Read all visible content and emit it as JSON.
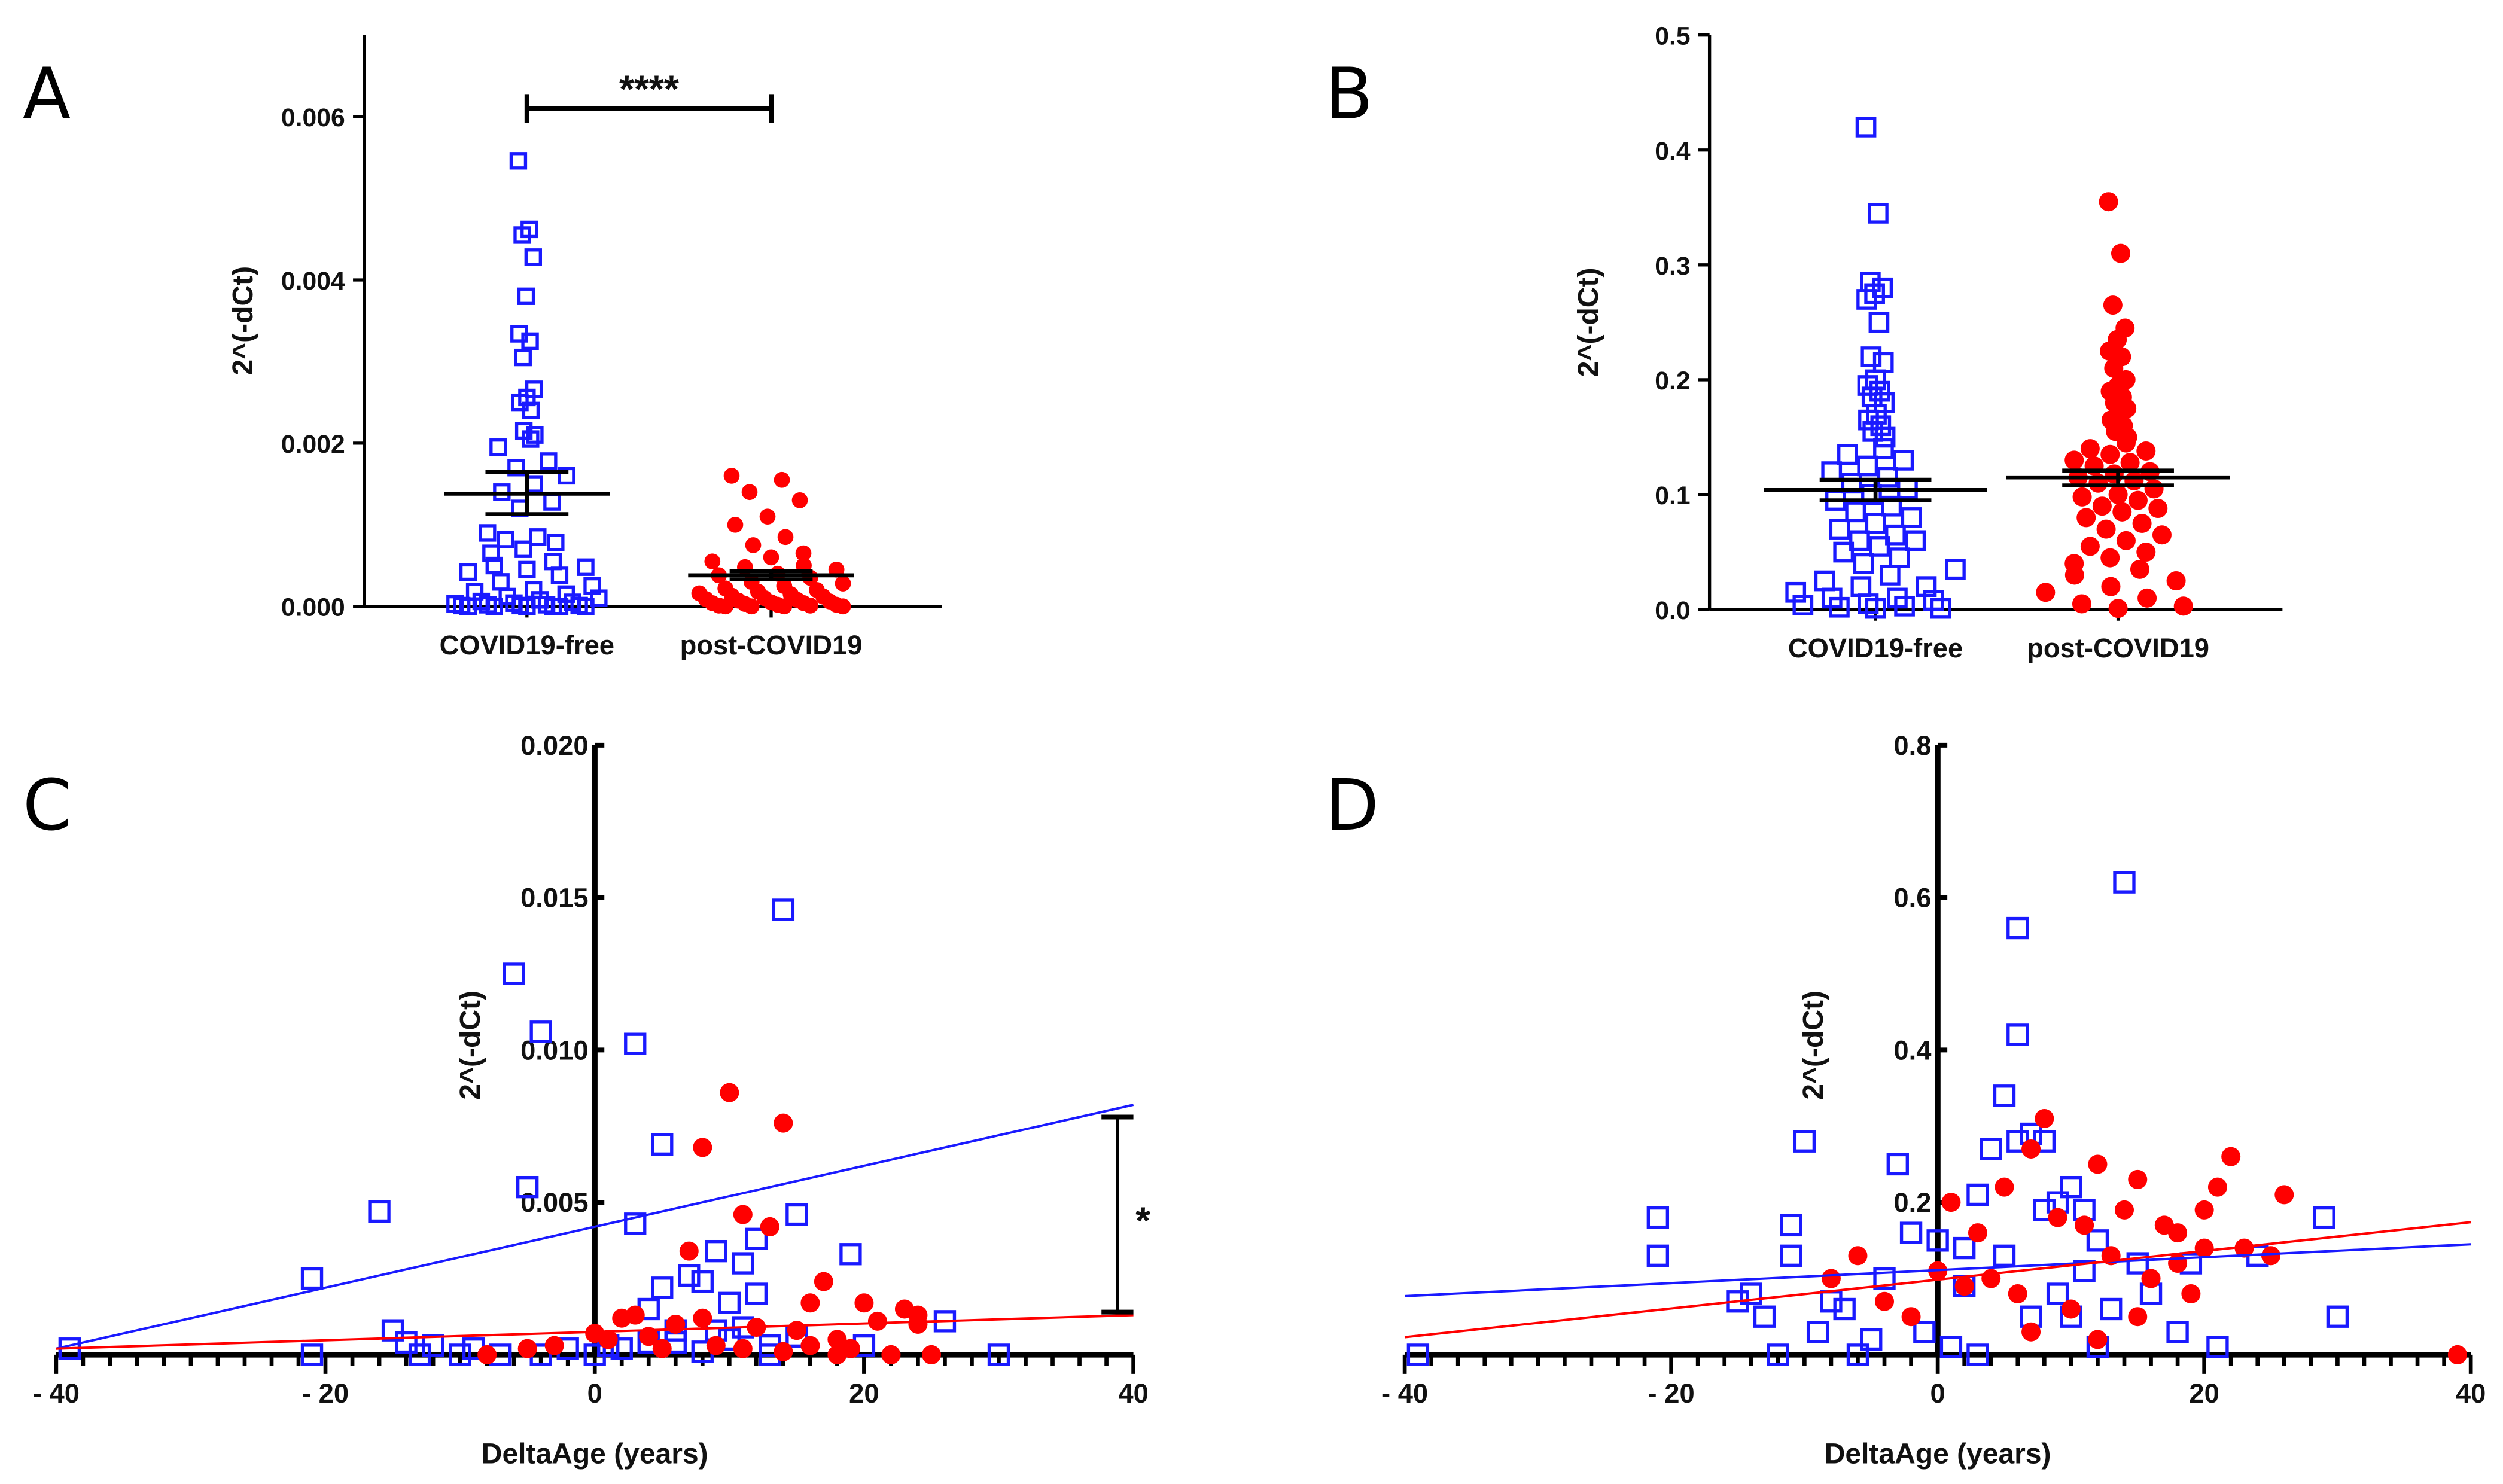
{
  "colors": {
    "blue": "#1a1aff",
    "red": "#ff0000",
    "axis": "#000000"
  },
  "chart_data": [
    {
      "panel": "A",
      "type": "scatter",
      "ylabel": "2^(-dCt)",
      "ylim": [
        0,
        0.007
      ],
      "yticks": [
        "0.000",
        "0.002",
        "0.004",
        "0.006"
      ],
      "ytick_values": [
        0,
        0.002,
        0.004,
        0.006
      ],
      "categories": [
        "COVID19-free",
        "post-COVID19"
      ],
      "significance": "****",
      "series": [
        {
          "name": "COVID19-free",
          "marker": "open-square",
          "mean": 0.00138,
          "sem": [
            0.00113,
            0.00165
          ],
          "values": [
            0.00546,
            0.00462,
            0.00455,
            0.00428,
            0.0038,
            0.00334,
            0.00325,
            0.00305,
            0.00266,
            0.00256,
            0.0025,
            0.0024,
            0.00215,
            0.0021,
            0.00205,
            0.00195,
            0.00178,
            0.0017,
            0.0016,
            0.0015,
            0.0014,
            0.00128,
            0.0012,
            0.0009,
            0.00085,
            0.00082,
            0.00078,
            0.0007,
            0.00065,
            0.00055,
            0.0005,
            0.00048,
            0.00045,
            0.00042,
            0.00038,
            0.0003,
            0.00025,
            0.0002,
            0.00018,
            0.00015,
            0.00012,
            0.0001,
            8e-05,
            6e-05,
            5e-05,
            4e-05,
            3e-05,
            2e-05,
            2e-05,
            1e-05,
            1e-05,
            1e-05,
            0,
            0,
            0,
            0,
            0,
            0
          ]
        },
        {
          "name": "post-COVID19",
          "marker": "filled-circle",
          "mean": 0.00038,
          "sem": [
            0.00033,
            0.00043
          ],
          "values": [
            0.0016,
            0.00155,
            0.0014,
            0.0013,
            0.0011,
            0.001,
            0.00085,
            0.00075,
            0.00065,
            0.0006,
            0.00055,
            0.0005,
            0.00048,
            0.00045,
            0.0004,
            0.00038,
            0.00035,
            0.0003,
            0.00028,
            0.00025,
            0.00022,
            0.0002,
            0.00018,
            0.00016,
            0.00015,
            0.00013,
            0.00012,
            0.0001,
            9e-05,
            8e-05,
            7e-05,
            6e-05,
            5e-05,
            4e-05,
            4e-05,
            3e-05,
            2e-05,
            2e-05,
            1e-05,
            1e-05,
            0,
            0,
            0,
            0
          ]
        }
      ]
    },
    {
      "panel": "B",
      "type": "scatter",
      "ylabel": "2^(-dCt)",
      "ylim": [
        0,
        0.5
      ],
      "yticks": [
        "0.0",
        "0.1",
        "0.2",
        "0.3",
        "0.4",
        "0.5"
      ],
      "ytick_values": [
        0,
        0.1,
        0.2,
        0.3,
        0.4,
        0.5
      ],
      "categories": [
        "COVID19-free",
        "post-COVID19"
      ],
      "series": [
        {
          "name": "COVID19-free",
          "marker": "open-square",
          "mean": 0.104,
          "sem": [
            0.095,
            0.113
          ],
          "values": [
            0.42,
            0.345,
            0.285,
            0.28,
            0.275,
            0.27,
            0.25,
            0.22,
            0.215,
            0.2,
            0.195,
            0.19,
            0.185,
            0.18,
            0.17,
            0.165,
            0.16,
            0.155,
            0.15,
            0.14,
            0.135,
            0.13,
            0.125,
            0.12,
            0.115,
            0.11,
            0.105,
            0.1,
            0.095,
            0.09,
            0.085,
            0.08,
            0.075,
            0.07,
            0.065,
            0.06,
            0.06,
            0.055,
            0.05,
            0.045,
            0.04,
            0.035,
            0.03,
            0.025,
            0.02,
            0.02,
            0.015,
            0.01,
            0.01,
            0.008,
            0.005,
            0.004,
            0.003,
            0.002,
            0.001,
            0.001
          ]
        },
        {
          "name": "post-COVID19",
          "marker": "filled-circle",
          "mean": 0.115,
          "sem": [
            0.108,
            0.121
          ],
          "values": [
            0.355,
            0.31,
            0.265,
            0.245,
            0.235,
            0.225,
            0.22,
            0.21,
            0.2,
            0.195,
            0.19,
            0.185,
            0.18,
            0.175,
            0.17,
            0.165,
            0.16,
            0.155,
            0.15,
            0.145,
            0.14,
            0.138,
            0.135,
            0.13,
            0.128,
            0.125,
            0.12,
            0.118,
            0.115,
            0.112,
            0.11,
            0.105,
            0.1,
            0.098,
            0.095,
            0.09,
            0.088,
            0.085,
            0.08,
            0.075,
            0.07,
            0.065,
            0.06,
            0.055,
            0.05,
            0.045,
            0.04,
            0.035,
            0.03,
            0.025,
            0.02,
            0.015,
            0.01,
            0.005,
            0.003,
            0.001
          ]
        }
      ]
    },
    {
      "panel": "C",
      "type": "scatter",
      "xlabel": "DeltaAge (years)",
      "ylabel": "2^(-dCt)",
      "xlim": [
        -40,
        40
      ],
      "ylim": [
        0,
        0.02
      ],
      "xticks": [
        "- 40",
        "- 20",
        "0",
        "20",
        "40"
      ],
      "xtick_values": [
        -40,
        -20,
        0,
        20,
        40
      ],
      "yticks": [
        "0.005",
        "0.010",
        "0.015",
        "0.020"
      ],
      "ytick_values": [
        0.005,
        0.01,
        0.015,
        0.02
      ],
      "significance": "*",
      "significance_range": [
        0.0014,
        0.0078
      ],
      "series": [
        {
          "name": "COVID19-free",
          "marker": "open-square",
          "fit": [
            [
              -40,
              0.0002
            ],
            [
              40,
              0.0082
            ]
          ],
          "points": [
            [
              -39,
              0.0002
            ],
            [
              -21,
              0.0025
            ],
            [
              -21,
              0
            ],
            [
              -16,
              0.0047
            ],
            [
              -15,
              0.0008
            ],
            [
              -14,
              0.0004
            ],
            [
              -13,
              0
            ],
            [
              -12,
              0.0003
            ],
            [
              -10,
              0
            ],
            [
              -9,
              0.0002
            ],
            [
              -7,
              0
            ],
            [
              -6,
              0.0125
            ],
            [
              -5,
              0.0055
            ],
            [
              -4,
              0.0106
            ],
            [
              -4,
              0
            ],
            [
              -2,
              0.0002
            ],
            [
              0,
              0
            ],
            [
              1,
              0.0003
            ],
            [
              2,
              0.0002
            ],
            [
              3,
              0.0102
            ],
            [
              3,
              0.0043
            ],
            [
              4,
              0.0015
            ],
            [
              5,
              0.0069
            ],
            [
              5,
              0.0022
            ],
            [
              6,
              0.0008
            ],
            [
              7,
              0.0026
            ],
            [
              8,
              0.0024
            ],
            [
              9,
              0.0034
            ],
            [
              10,
              0.0017
            ],
            [
              11,
              0.003
            ],
            [
              12,
              0.0038
            ],
            [
              12,
              0.002
            ],
            [
              13,
              0
            ],
            [
              14,
              0.0146
            ],
            [
              15,
              0.0046
            ],
            [
              15,
              0.0006
            ],
            [
              19,
              0.0033
            ],
            [
              20,
              0.0003
            ],
            [
              26,
              0.0011
            ],
            [
              30,
              0
            ],
            [
              6,
              0.0004
            ],
            [
              8,
              0.0001
            ],
            [
              10,
              0.0005
            ],
            [
              11,
              0.0009
            ],
            [
              4,
              0.0004
            ],
            [
              9,
              0.0008
            ],
            [
              13,
              0.0003
            ]
          ]
        },
        {
          "name": "post-COVID19",
          "marker": "filled-circle",
          "fit": [
            [
              -40,
              0.0002
            ],
            [
              40,
              0.0013
            ]
          ],
          "points": [
            [
              10,
              0.0086
            ],
            [
              14,
              0.0076
            ],
            [
              8,
              0.0068
            ],
            [
              11,
              0.0046
            ],
            [
              13,
              0.0042
            ],
            [
              7,
              0.0034
            ],
            [
              17,
              0.0024
            ],
            [
              16,
              0.0017
            ],
            [
              20,
              0.0017
            ],
            [
              23,
              0.0015
            ],
            [
              24,
              0.0013
            ],
            [
              21,
              0.0011
            ],
            [
              24,
              0.001
            ],
            [
              2,
              0.0012
            ],
            [
              3,
              0.0013
            ],
            [
              6,
              0.001
            ],
            [
              8,
              0.0012
            ],
            [
              12,
              0.0009
            ],
            [
              15,
              0.0008
            ],
            [
              18,
              0.0005
            ],
            [
              19,
              0.0002
            ],
            [
              22,
              0
            ],
            [
              25,
              0
            ],
            [
              18,
              0
            ],
            [
              -5,
              0.0002
            ],
            [
              -3,
              0.0003
            ],
            [
              -8,
              0
            ],
            [
              1,
              0.0005
            ],
            [
              4,
              0.0006
            ],
            [
              9,
              0.0003
            ],
            [
              11,
              0.0002
            ],
            [
              14,
              0.0001
            ],
            [
              16,
              0.0003
            ],
            [
              5,
              0.0002
            ],
            [
              0,
              0.0007
            ]
          ]
        }
      ]
    },
    {
      "panel": "D",
      "type": "scatter",
      "xlabel": "DeltaAge (years)",
      "ylabel": "2^(-dCt)",
      "xlim": [
        -40,
        40
      ],
      "ylim": [
        0,
        0.8
      ],
      "xticks": [
        "- 40",
        "- 20",
        "0",
        "20",
        "40"
      ],
      "xtick_values": [
        -40,
        -20,
        0,
        20,
        40
      ],
      "yticks": [
        "0.2",
        "0.4",
        "0.6",
        "0.8"
      ],
      "ytick_values": [
        0.2,
        0.4,
        0.6,
        0.8
      ],
      "series": [
        {
          "name": "COVID19-free",
          "marker": "open-square",
          "fit": [
            [
              -40,
              0.077
            ],
            [
              40,
              0.145
            ]
          ],
          "points": [
            [
              -39,
              0
            ],
            [
              -21,
              0.18
            ],
            [
              -21,
              0.13
            ],
            [
              -15,
              0.07
            ],
            [
              -14,
              0.08
            ],
            [
              -13,
              0.05
            ],
            [
              -12,
              0
            ],
            [
              -11,
              0.17
            ],
            [
              -11,
              0.13
            ],
            [
              -10,
              0.28
            ],
            [
              -9,
              0.03
            ],
            [
              -8,
              0.07
            ],
            [
              -7,
              0.06
            ],
            [
              -6,
              0
            ],
            [
              -5,
              0.02
            ],
            [
              -4,
              0.1
            ],
            [
              -3,
              0.25
            ],
            [
              -2,
              0.16
            ],
            [
              -1,
              0.03
            ],
            [
              0,
              0.15
            ],
            [
              1,
              0.01
            ],
            [
              2,
              0.09
            ],
            [
              3,
              0.21
            ],
            [
              4,
              0.27
            ],
            [
              5,
              0.34
            ],
            [
              5,
              0.13
            ],
            [
              6,
              0.56
            ],
            [
              6,
              0.42
            ],
            [
              6,
              0.28
            ],
            [
              7,
              0.29
            ],
            [
              8,
              0.28
            ],
            [
              8,
              0.19
            ],
            [
              9,
              0.2
            ],
            [
              10,
              0.22
            ],
            [
              10,
              0.05
            ],
            [
              11,
              0.19
            ],
            [
              12,
              0.15
            ],
            [
              12,
              0.01
            ],
            [
              13,
              0.06
            ],
            [
              14,
              0.62
            ],
            [
              15,
              0.12
            ],
            [
              16,
              0.08
            ],
            [
              18,
              0.03
            ],
            [
              19,
              0.12
            ],
            [
              21,
              0.01
            ],
            [
              24,
              0.13
            ],
            [
              29,
              0.18
            ],
            [
              30,
              0.05
            ],
            [
              3,
              0
            ],
            [
              7,
              0.05
            ],
            [
              9,
              0.08
            ],
            [
              11,
              0.11
            ],
            [
              2,
              0.14
            ]
          ]
        },
        {
          "name": "post-COVID19",
          "marker": "filled-circle",
          "fit": [
            [
              -40,
              0.023
            ],
            [
              40,
              0.174
            ]
          ],
          "points": [
            [
              39,
              0
            ],
            [
              8,
              0.31
            ],
            [
              7,
              0.27
            ],
            [
              12,
              0.25
            ],
            [
              15,
              0.23
            ],
            [
              22,
              0.26
            ],
            [
              21,
              0.22
            ],
            [
              26,
              0.21
            ],
            [
              20,
              0.19
            ],
            [
              5,
              0.22
            ],
            [
              1,
              0.2
            ],
            [
              3,
              0.16
            ],
            [
              9,
              0.18
            ],
            [
              11,
              0.17
            ],
            [
              14,
              0.19
            ],
            [
              17,
              0.17
            ],
            [
              18,
              0.12
            ],
            [
              19,
              0.08
            ],
            [
              16,
              0.1
            ],
            [
              13,
              0.13
            ],
            [
              10,
              0.06
            ],
            [
              6,
              0.08
            ],
            [
              4,
              0.1
            ],
            [
              -4,
              0.07
            ],
            [
              -6,
              0.13
            ],
            [
              -2,
              0.05
            ],
            [
              0,
              0.11
            ],
            [
              2,
              0.09
            ],
            [
              7,
              0.03
            ],
            [
              12,
              0.02
            ],
            [
              23,
              0.14
            ],
            [
              25,
              0.13
            ],
            [
              15,
              0.05
            ],
            [
              -8,
              0.1
            ],
            [
              18,
              0.16
            ],
            [
              20,
              0.14
            ]
          ]
        }
      ]
    }
  ]
}
